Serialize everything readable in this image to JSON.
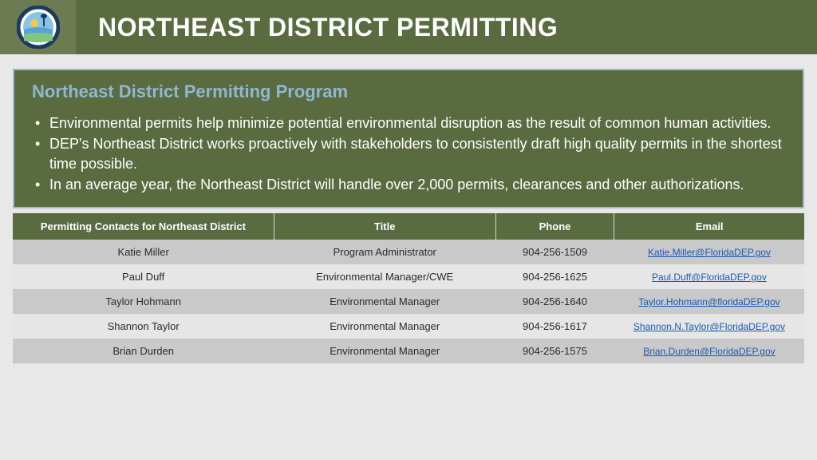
{
  "header": {
    "title": "NORTHEAST DISTRICT PERMITTING"
  },
  "content": {
    "subtitle": "Northeast District Permitting Program",
    "bullets": [
      "Environmental permits help minimize potential environmental disruption as the result of common human activities.",
      "DEP's Northeast District works proactively with stakeholders to consistently draft high quality permits in the shortest time possible.",
      "In an average year, the Northeast District will handle over 2,000 permits, clearances and other authorizations."
    ]
  },
  "table": {
    "headers": [
      "Permitting Contacts for Northeast District",
      "Title",
      "Phone",
      "Email"
    ],
    "rows": [
      {
        "name": "Katie Miller",
        "title": "Program Administrator",
        "phone": "904-256-1509",
        "email": "Katie.Miller@FloridaDEP.gov"
      },
      {
        "name": "Paul Duff",
        "title": "Environmental Manager/CWE",
        "phone": "904-256-1625",
        "email": "Paul.Duff@FloridaDEP.gov"
      },
      {
        "name": "Taylor Hohmann",
        "title": "Environmental Manager",
        "phone": "904-256-1640",
        "email": "Taylor.Hohmann@floridaDEP.gov"
      },
      {
        "name": "Shannon Taylor",
        "title": "Environmental Manager",
        "phone": "904-256-1617",
        "email": "Shannon.N.Taylor@FloridaDEP.gov"
      },
      {
        "name": "Brian Durden",
        "title": "Environmental Manager",
        "phone": "904-256-1575",
        "email": "Brian.Durden@FloridaDEP.gov"
      }
    ]
  },
  "colors": {
    "header_bg": "#5a6b3f",
    "logo_bg": "#6c7b51",
    "content_border": "#9fbacb",
    "subtitle": "#8fb7d1",
    "row_odd": "#c9c9c9",
    "row_even": "#e6e6e6",
    "link": "#1a5ab5"
  }
}
